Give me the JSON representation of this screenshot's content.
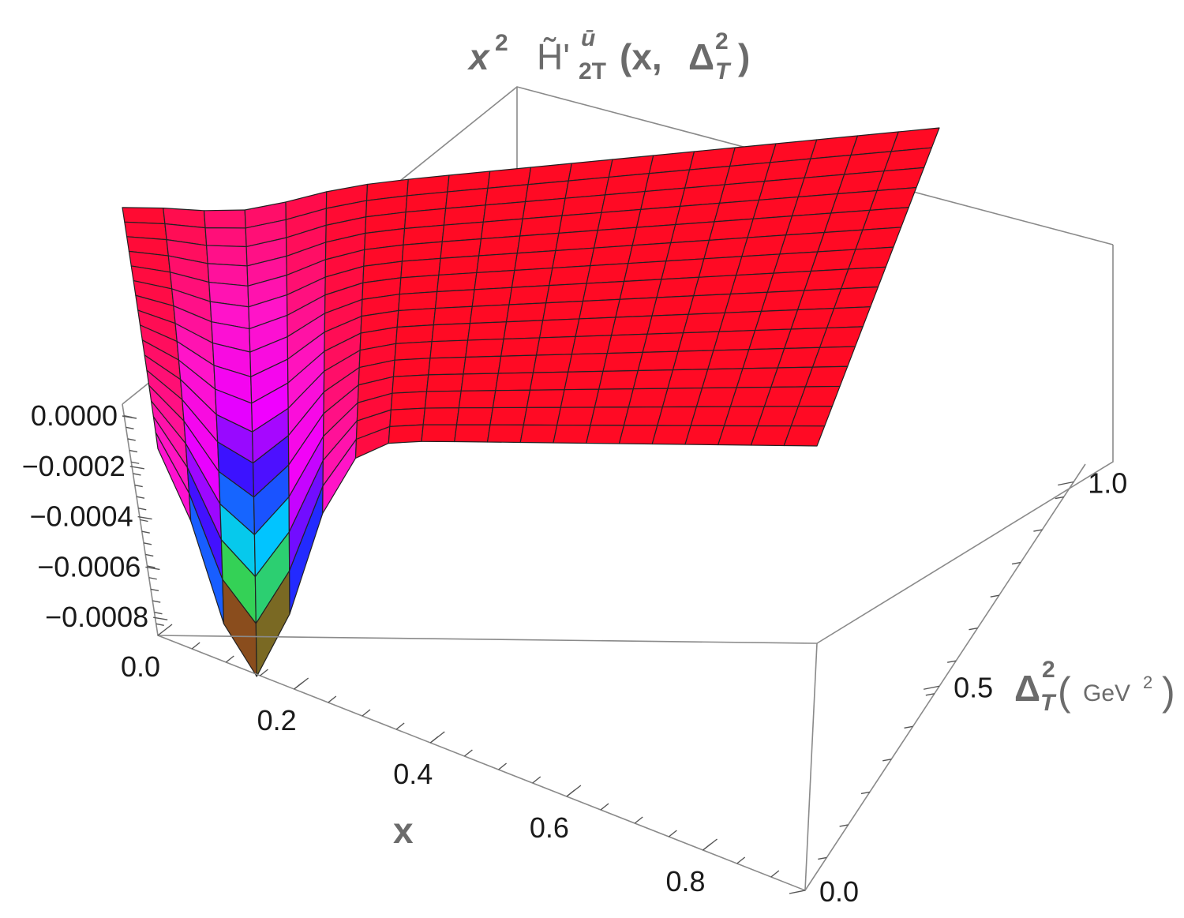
{
  "chart_data": {
    "type": "surface3d",
    "title_parts": {
      "prefix": "x",
      "prefix_power": "2",
      "func": "H̃'",
      "superscript": "ū",
      "subscript": "2T",
      "args_open": "(x, ",
      "delta": "Δ",
      "delta_sup": "2",
      "delta_sub": "T",
      "args_close": ")"
    },
    "x_axis": {
      "label": "x",
      "range": [
        0.0,
        0.95
      ],
      "ticks": [
        0.0,
        0.2,
        0.4,
        0.6,
        0.8
      ],
      "tick_labels": [
        "0.0",
        "0.2",
        "0.4",
        "0.6",
        "0.8"
      ]
    },
    "y_axis": {
      "label_symbol": "Δ",
      "label_sup": "2",
      "label_sub": "T",
      "label_unit": "GeV",
      "label_unit_sup": "2",
      "range": [
        0.0,
        1.2
      ],
      "ticks": [
        0.0,
        0.5,
        1.0
      ],
      "tick_labels": [
        "0.0",
        "0.5",
        "1.0"
      ]
    },
    "z_axis": {
      "range": [
        -0.0009,
        0.0
      ],
      "ticks": [
        0.0,
        -0.0002,
        -0.0004,
        -0.0006,
        -0.0008
      ],
      "tick_labels": [
        "0.0000",
        "−0.0002",
        "−0.0004",
        "−0.0006",
        "−0.0008"
      ]
    },
    "surface": {
      "description": "z(x, Delta_T^2) negative near small x and small Delta, approaching 0 elsewhere",
      "min_value": -0.00082,
      "min_at_x": 0.12,
      "min_at_delta": 0.0,
      "grid_x_lines": 21,
      "grid_y_lines": 17
    },
    "colors": {
      "surface_main": "#ff0a24",
      "magenta": "#ff00ff",
      "blue": "#1010ff",
      "cyan": "#00e0ff",
      "green": "#30d030",
      "dark_red": "#8a1010",
      "box": "#8a8a8a",
      "title_gray": "#6b6b6b"
    }
  }
}
